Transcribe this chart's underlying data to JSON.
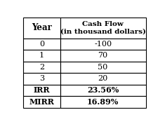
{
  "col1_header": "Year",
  "col2_header": "Cash Flow\n(in thousand dollars)",
  "rows": [
    [
      "0",
      "-100"
    ],
    [
      "1",
      "70"
    ],
    [
      "2",
      "50"
    ],
    [
      "3",
      "20"
    ]
  ],
  "summary_rows": [
    [
      "IRR",
      "23.56%"
    ],
    [
      "MIRR",
      "16.89%"
    ]
  ],
  "bg_color": "#ffffff",
  "border_color": "#000000",
  "fig_width": 2.35,
  "fig_height": 1.77,
  "dpi": 100
}
